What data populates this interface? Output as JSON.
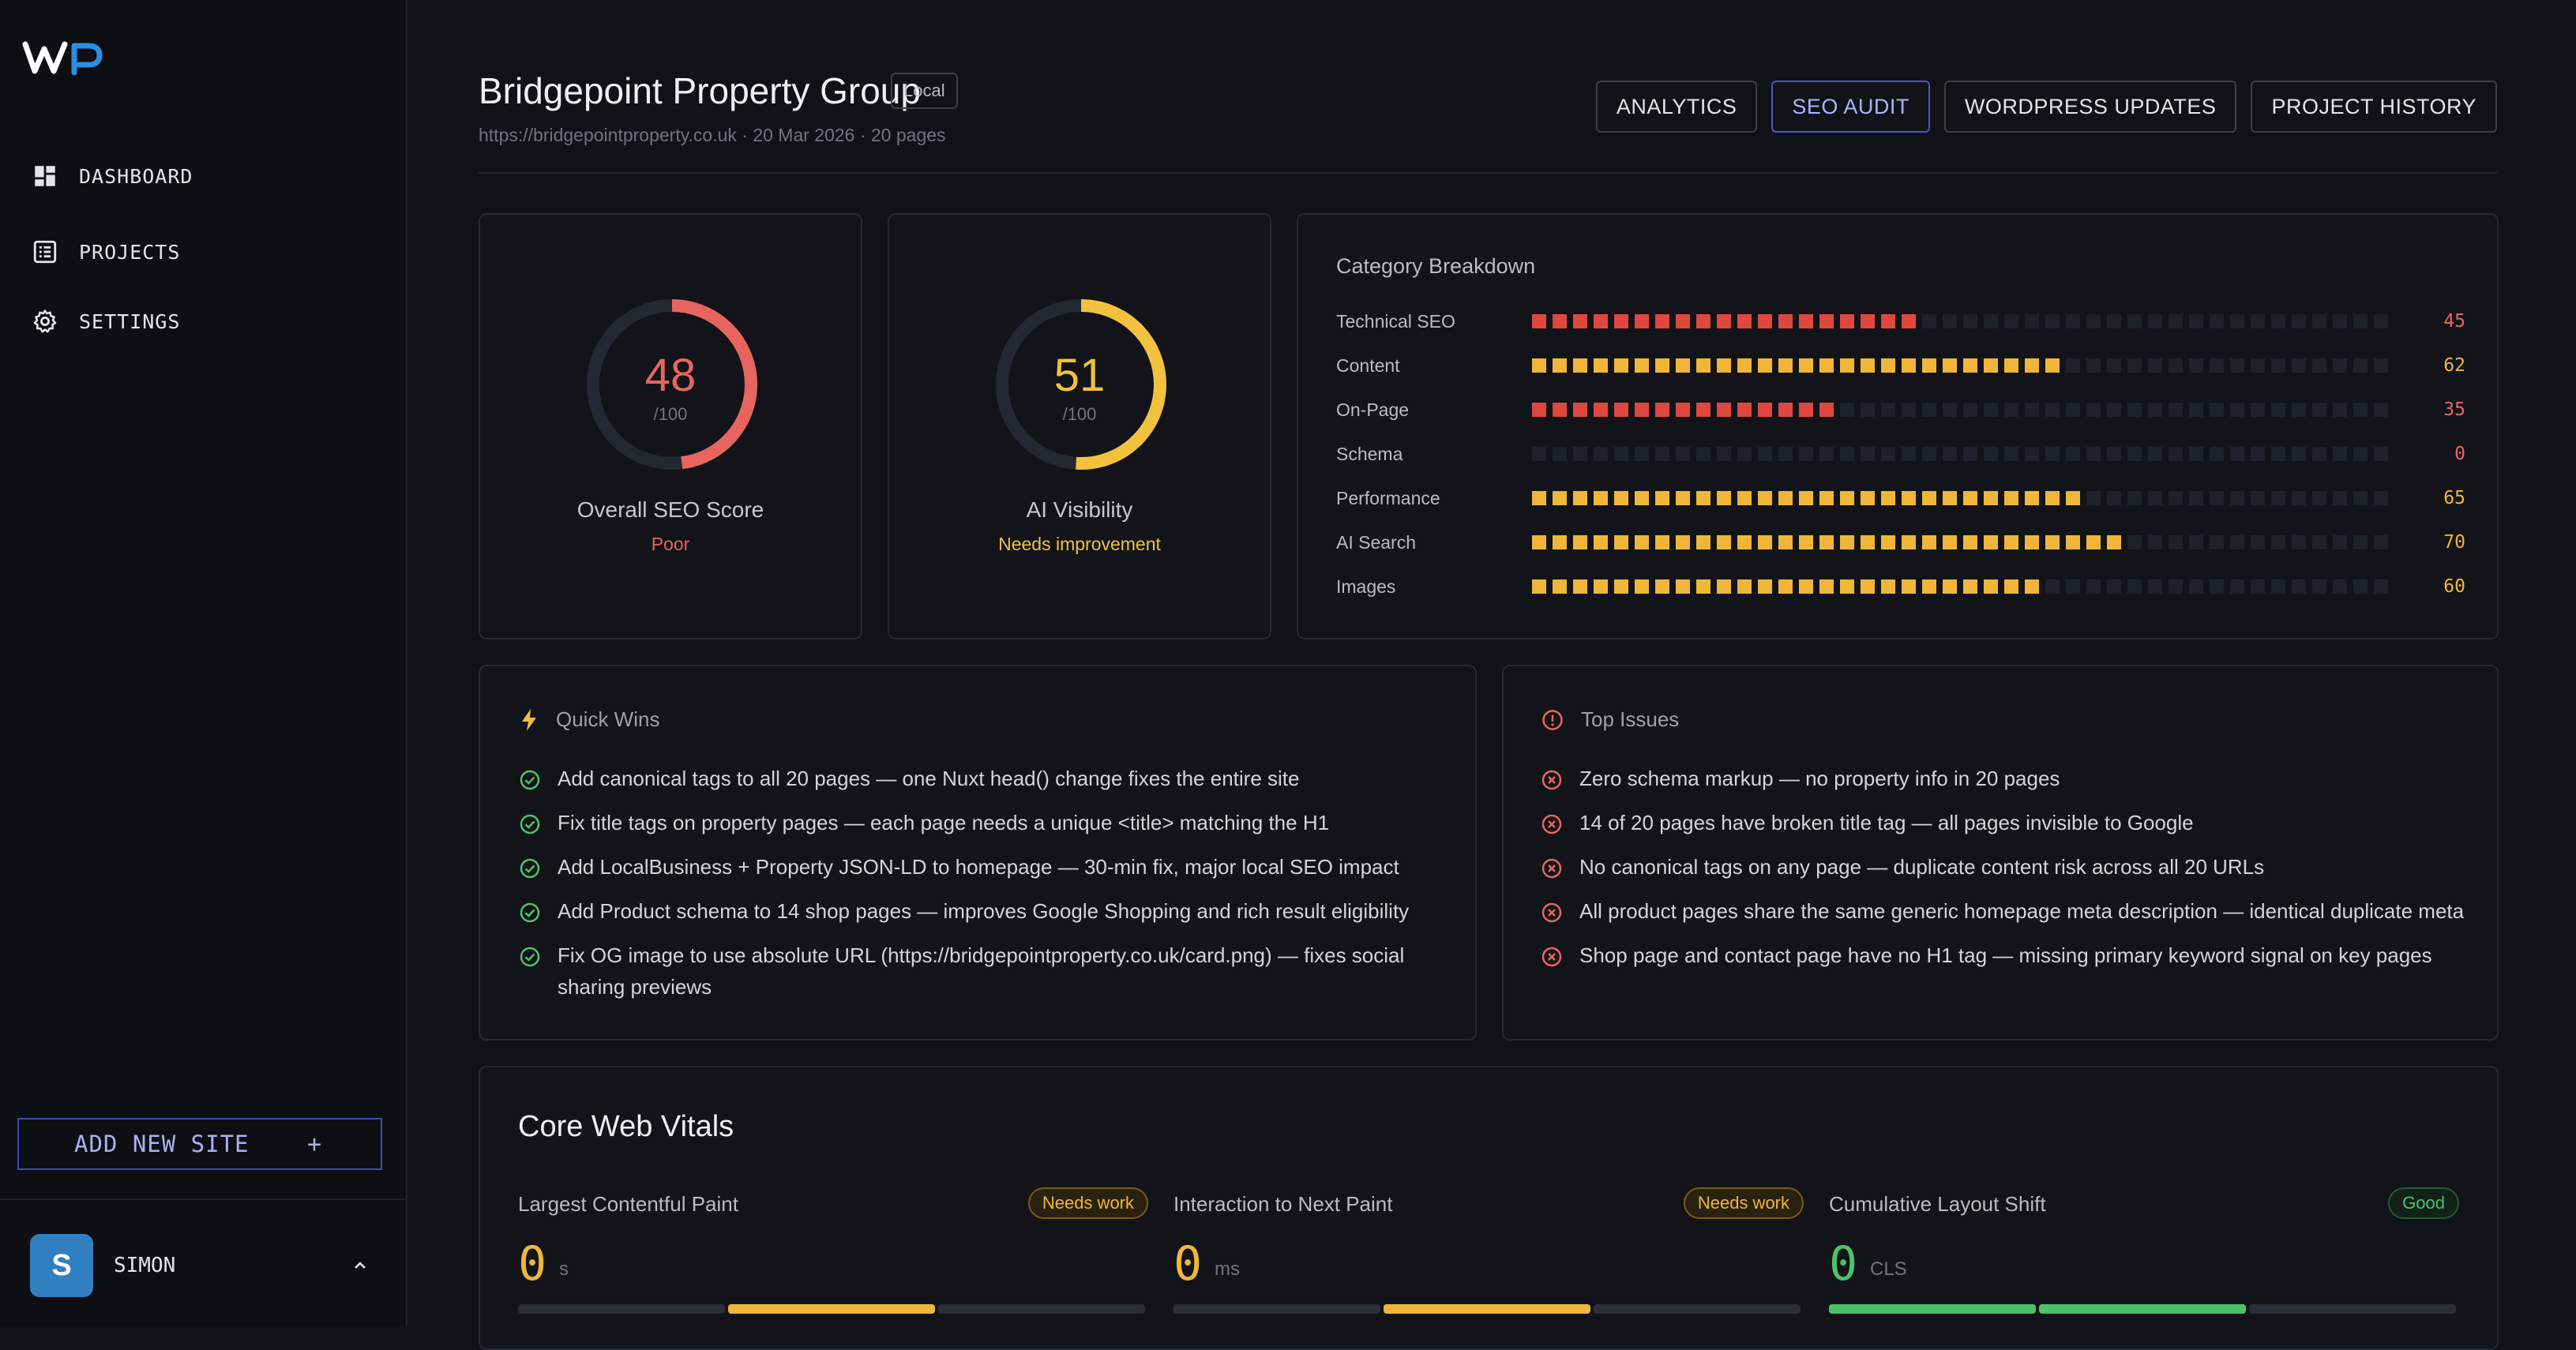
{
  "sidebar": {
    "nav": [
      {
        "label": "DASHBOARD",
        "icon": "dashboard-icon"
      },
      {
        "label": "PROJECTS",
        "icon": "list-icon"
      },
      {
        "label": "SETTINGS",
        "icon": "gear-icon"
      }
    ],
    "add_site_label": "ADD NEW SITE",
    "add_site_icon": "+",
    "user": {
      "initial": "S",
      "name": "SIMON"
    }
  },
  "header": {
    "title": "Bridgepoint Property Group",
    "badge": "Local",
    "subtitle": "https://bridgepointproperty.co.uk · 20 Mar 2026 · 20 pages",
    "tabs": [
      {
        "label": "ANALYTICS",
        "active": false
      },
      {
        "label": "SEO AUDIT",
        "active": true
      },
      {
        "label": "WORDPRESS UPDATES",
        "active": false
      },
      {
        "label": "PROJECT HISTORY",
        "active": false
      }
    ]
  },
  "scores": {
    "seo": {
      "value": "48",
      "out_of": "/100",
      "label": "Overall SEO Score",
      "status": "Poor",
      "fraction": 0.48,
      "color": "#e8655f"
    },
    "ai": {
      "value": "51",
      "out_of": "/100",
      "label": "AI Visibility",
      "status": "Needs improvement",
      "fraction": 0.51,
      "color": "#f2c13e"
    }
  },
  "category_breakdown": {
    "title": "Category Breakdown",
    "items": [
      {
        "name": "Technical SEO",
        "value": "45",
        "score": 45,
        "color": "#e0473f"
      },
      {
        "name": "Content",
        "value": "62",
        "score": 62,
        "color": "#f0b63a"
      },
      {
        "name": "On-Page",
        "value": "35",
        "score": 35,
        "color": "#e0473f"
      },
      {
        "name": "Schema",
        "value": "0",
        "score": 0,
        "color": "#e0473f"
      },
      {
        "name": "Performance",
        "value": "65",
        "score": 65,
        "color": "#f0b63a"
      },
      {
        "name": "AI Search",
        "value": "70",
        "score": 70,
        "color": "#f0b63a"
      },
      {
        "name": "Images",
        "value": "60",
        "score": 60,
        "color": "#f0b63a"
      }
    ]
  },
  "quick_wins": {
    "title": "Quick Wins",
    "items": [
      "Add canonical tags to all 20 pages — one Nuxt head() change fixes the entire site",
      "Fix title tags on property pages — each page needs a unique <title> matching the H1",
      "Add LocalBusiness + Property JSON-LD to homepage — 30-min fix, major local SEO impact",
      "Add Product schema to 14 shop pages — improves Google Shopping and rich result eligibility",
      "Fix OG image to use absolute URL (https://bridgepointproperty.co.uk/card.png) — fixes social sharing previews"
    ]
  },
  "top_issues": {
    "title": "Top Issues",
    "items": [
      "Zero schema markup — no property info in 20 pages",
      "14 of 20 pages have broken title tag — all pages invisible to Google",
      "No canonical tags on any page — duplicate content risk across all 20 URLs",
      "All product pages share the same generic homepage meta description — identical duplicate meta",
      "Shop page and contact page have no H1 tag — missing primary keyword signal on key pages"
    ]
  },
  "core_web_vitals": {
    "title": "Core Web Vitals",
    "metrics": [
      {
        "name": "Largest Contentful Paint",
        "status": "Needs work",
        "value": "0",
        "unit": "s",
        "active_segment": 1,
        "color": "#f0b63a"
      },
      {
        "name": "Interaction to Next Paint",
        "status": "Needs work",
        "value": "0",
        "unit": "ms",
        "active_segment": 1,
        "color": "#f0b63a"
      },
      {
        "name": "Cumulative Layout Shift",
        "status": "Good",
        "value": "0",
        "unit": "CLS",
        "active_segment": 0,
        "color": "#4cc36a"
      }
    ]
  }
}
